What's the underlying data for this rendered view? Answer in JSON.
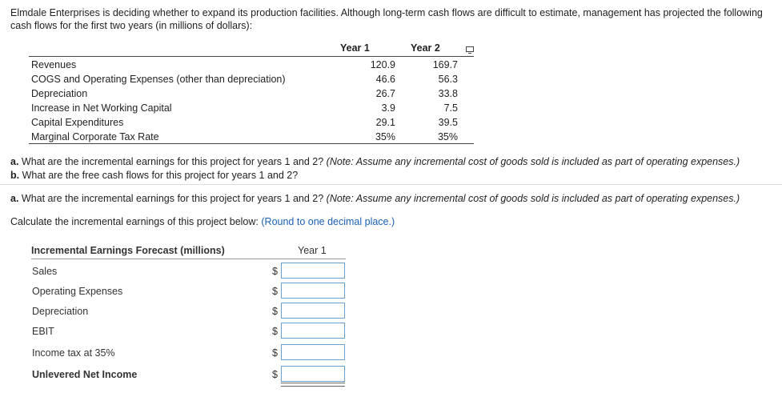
{
  "intro": "Elmdale Enterprises is deciding whether to expand its production facilities. Although long-term cash flows are difficult to estimate, management has projected the following cash flows for the first two years (in millions of dollars):",
  "table": {
    "col1": "Year 1",
    "col2": "Year 2",
    "rows": [
      {
        "label": "Revenues",
        "y1": "120.9",
        "y2": "169.7"
      },
      {
        "label": "COGS and Operating Expenses (other than depreciation)",
        "y1": "46.6",
        "y2": "56.3"
      },
      {
        "label": "Depreciation",
        "y1": "26.7",
        "y2": "33.8"
      },
      {
        "label": "Increase in Net Working Capital",
        "y1": "3.9",
        "y2": "7.5"
      },
      {
        "label": "Capital Expenditures",
        "y1": "29.1",
        "y2": "39.5"
      },
      {
        "label": "Marginal Corporate Tax Rate",
        "y1": "35%",
        "y2": "35%"
      }
    ]
  },
  "questions": {
    "a_prefix": "a.",
    "a_text": " What are the incremental earnings for this project for years 1 and 2?",
    "a_note": " (Note: Assume any incremental cost of goods sold is included as part of operating expenses.)",
    "b_prefix": "b.",
    "b_text": " What are the free cash flows for this project for years 1 and 2?"
  },
  "part_a": {
    "prefix": "a.",
    "text": " What are the incremental earnings for this project for years 1 and 2?",
    "note": " (Note: Assume any incremental cost of goods sold is included as part of operating expenses.)",
    "instruction": "Calculate the incremental earnings of this project below: ",
    "rounding": "(Round to one decimal place.)"
  },
  "form": {
    "title": "Incremental Earnings Forecast (millions)",
    "column": "Year 1",
    "currency": "$",
    "rows": [
      {
        "label": "Sales",
        "value": ""
      },
      {
        "label": "Operating Expenses",
        "value": ""
      },
      {
        "label": "Depreciation",
        "value": ""
      },
      {
        "label": "EBIT",
        "value": ""
      },
      {
        "label": "Income tax at 35%",
        "value": ""
      },
      {
        "label": "Unlevered Net Income",
        "value": ""
      }
    ]
  },
  "icons": {
    "copy": "copy-icon"
  },
  "colors": {
    "accent": "#1a5fb4",
    "input_border": "#6a9fd0"
  }
}
